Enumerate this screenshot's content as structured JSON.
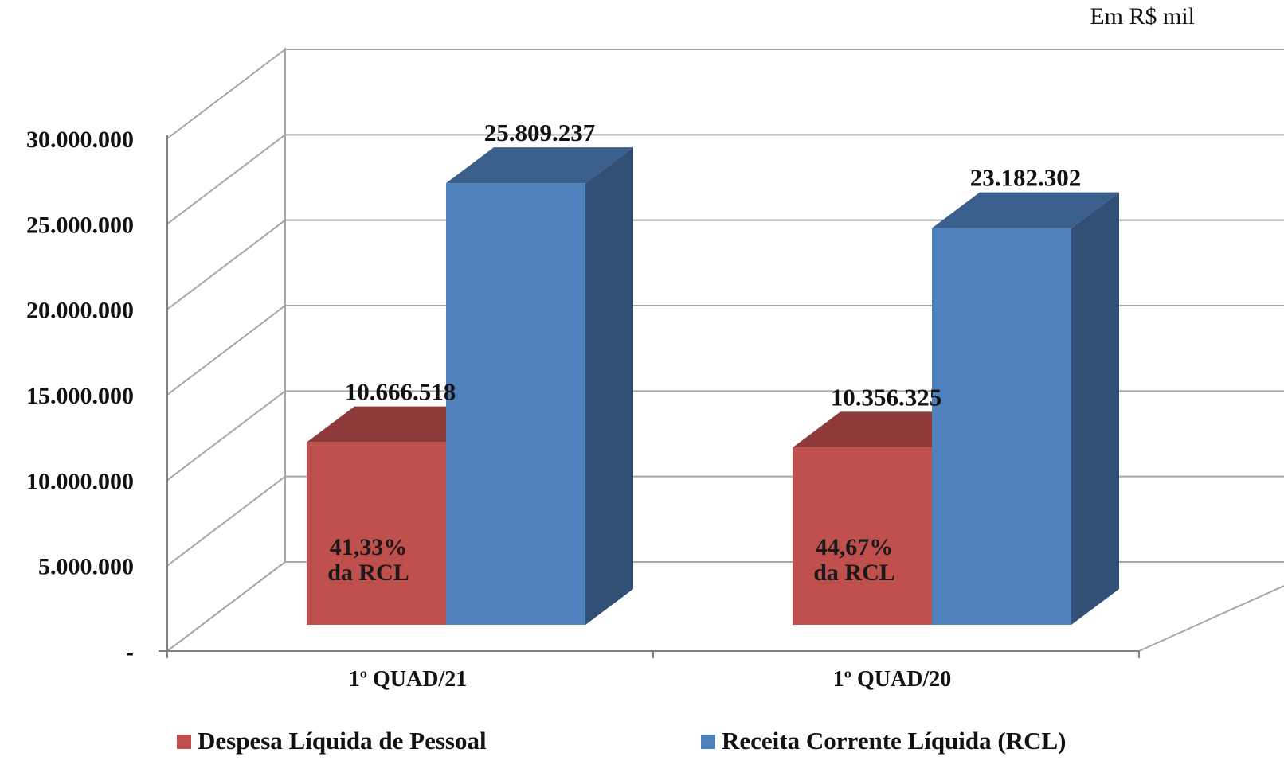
{
  "unit_note": "Em R$ mil",
  "colors": {
    "despesa_front": "#C0504D",
    "despesa_top": "#8E3A38",
    "despesa_side": "#8E3A38",
    "receita_front": "#4F81BD",
    "receita_top": "#3A5F8D",
    "receita_side": "#324F76",
    "grid": "#A6A6A6",
    "axis": "#808080"
  },
  "chart_data": {
    "type": "bar",
    "style": "3d-clustered-column",
    "categories": [
      "1º QUAD/21",
      "1º QUAD/20"
    ],
    "series": [
      {
        "name": "Despesa Líquida de Pessoal",
        "values": [
          10666518,
          10356325
        ],
        "value_labels": [
          "10.666.518",
          "10.356.325"
        ],
        "inner_labels": [
          [
            "41,33%",
            "da RCL"
          ],
          [
            "44,67%",
            "da RCL"
          ]
        ]
      },
      {
        "name": "Receita Corrente Líquida (RCL)",
        "values": [
          25809237,
          23182302
        ],
        "value_labels": [
          "25.809.237",
          "23.182.302"
        ]
      }
    ],
    "ylim": [
      0,
      30000000
    ],
    "yticks": [
      0,
      5000000,
      10000000,
      15000000,
      20000000,
      25000000,
      30000000
    ],
    "ytick_labels": [
      "-",
      "5.000.000",
      "10.000.000",
      "15.000.000",
      "20.000.000",
      "25.000.000",
      "30.000.000"
    ],
    "grid": true,
    "legend_position": "bottom"
  }
}
